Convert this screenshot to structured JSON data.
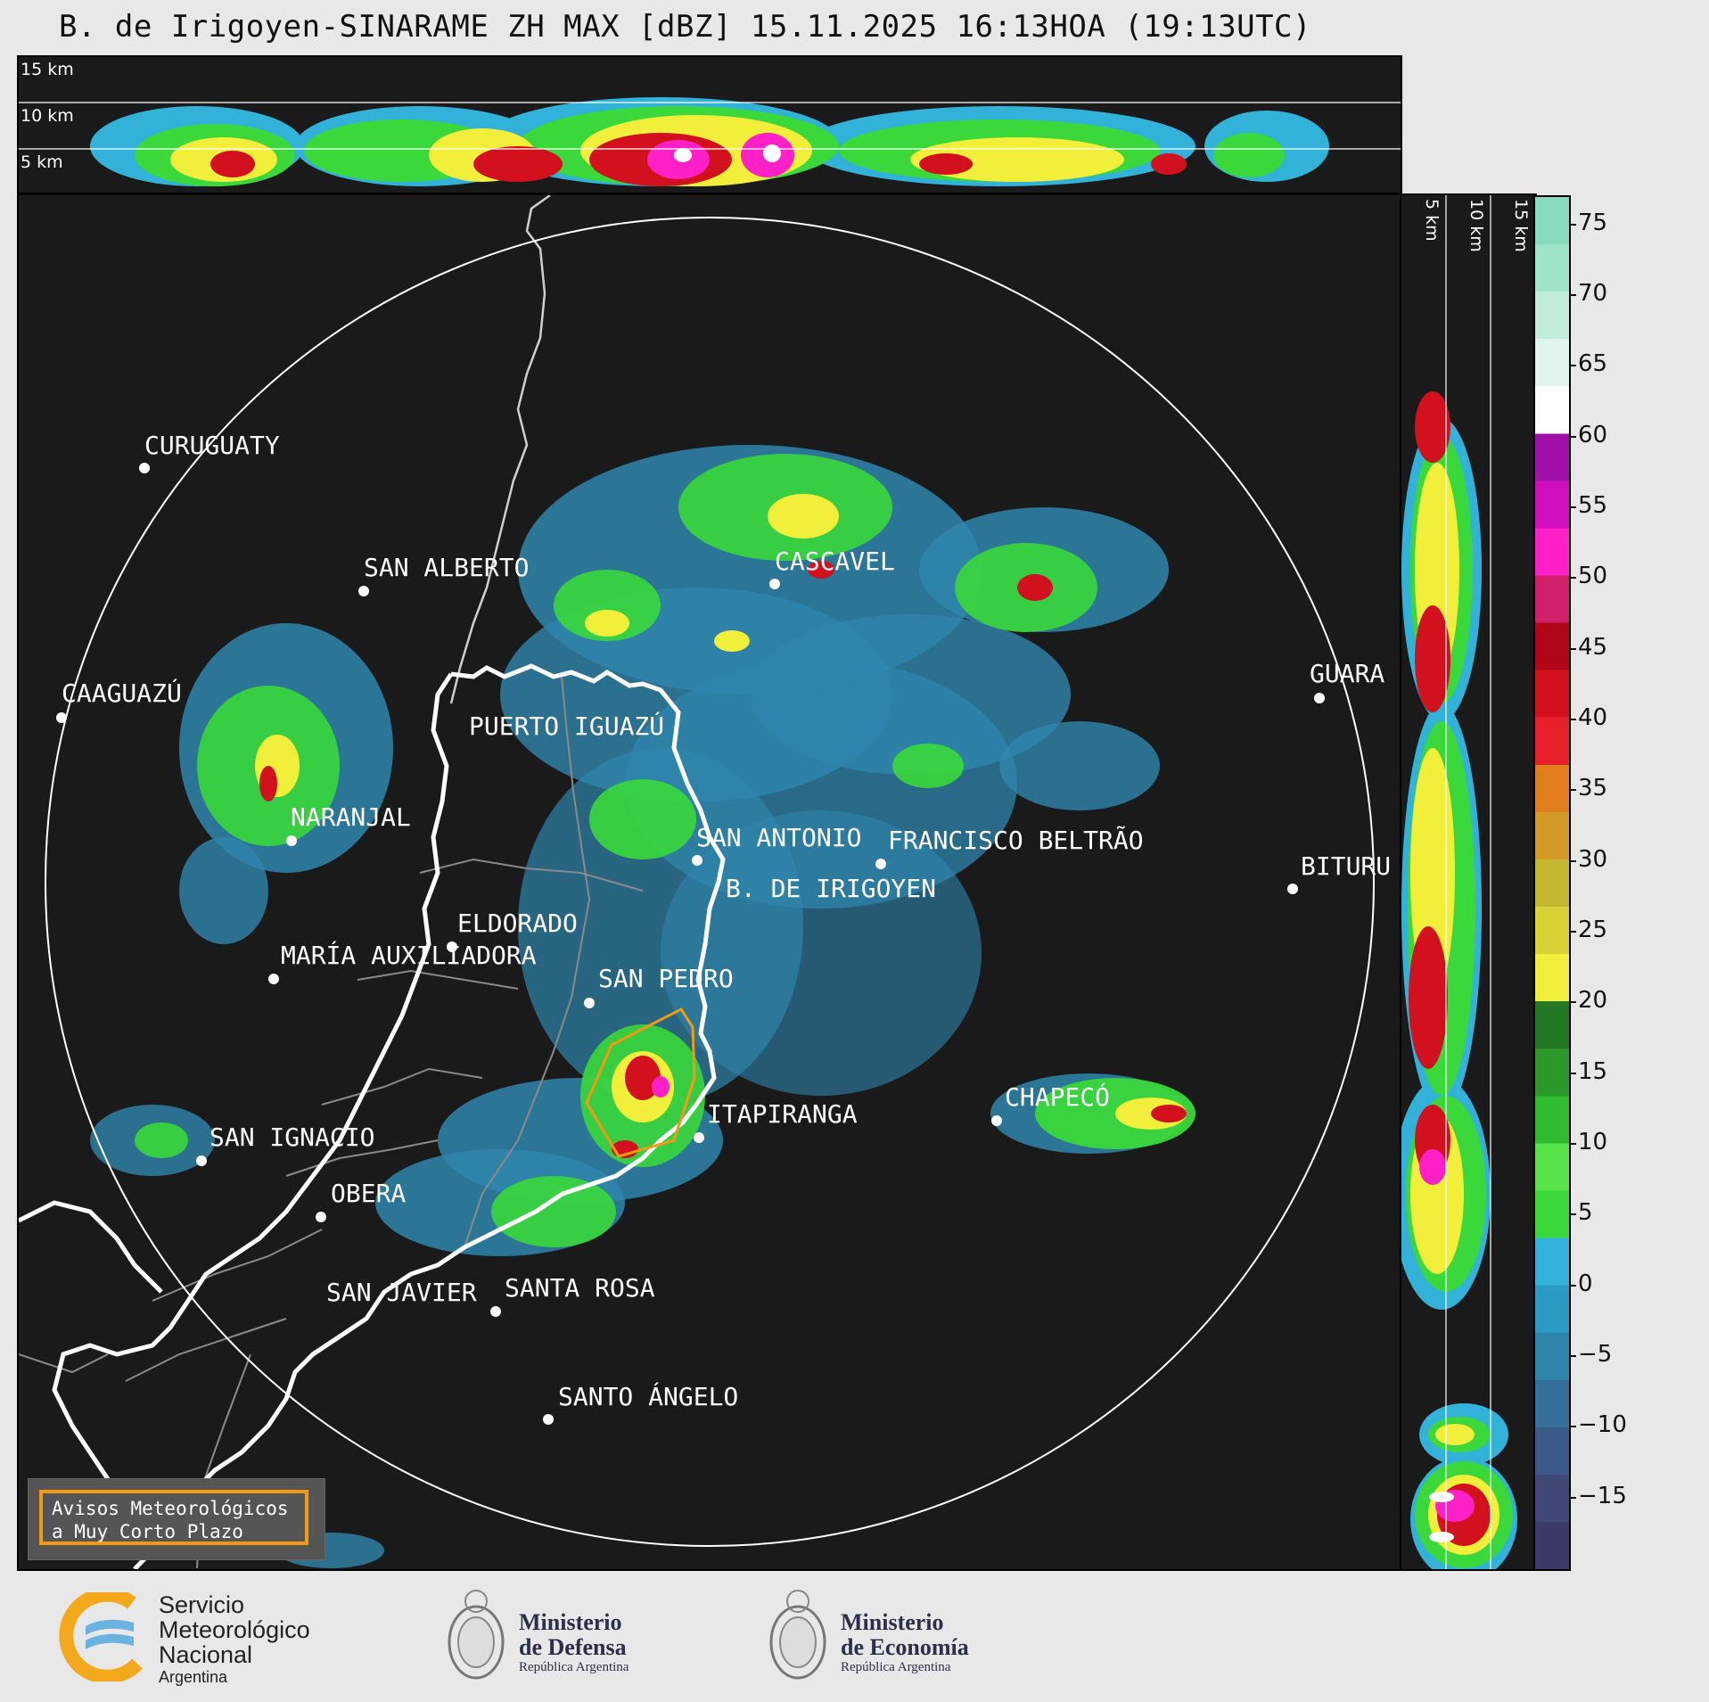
{
  "title": "B. de Irigoyen-SINARAME ZH MAX [dBZ] 15.11.2025 16:13HOA (19:13UTC)",
  "top_panel": {
    "height_labels": [
      "15 km",
      "10 km",
      "5 km"
    ]
  },
  "right_panel": {
    "height_labels": [
      "5 km",
      "10 km",
      "15 km"
    ]
  },
  "colorbar": {
    "ticks": [
      "75",
      "70",
      "65",
      "60",
      "55",
      "50",
      "45",
      "40",
      "35",
      "30",
      "25",
      "20",
      "15",
      "10",
      "5",
      "0",
      "−5",
      "−10",
      "−15"
    ],
    "range": [
      -20,
      77
    ],
    "colors": [
      "#3b3a6a",
      "#404878",
      "#3c5a8a",
      "#36709a",
      "#2f86ad",
      "#2a9bc4",
      "#32b2d8",
      "#3ad83a",
      "#58e34a",
      "#2fbd2f",
      "#2b9a2b",
      "#247a24",
      "#f2ef3a",
      "#d8d236",
      "#c4b730",
      "#d49a28",
      "#e07e1e",
      "#e8202a",
      "#d2101e",
      "#b00818",
      "#d0206a",
      "#ff20c8",
      "#d010c0",
      "#a010a8",
      "#ffffff",
      "#e0f4ec",
      "#c0ecd8",
      "#a0e4c8",
      "#86dcbc"
    ]
  },
  "cities": [
    {
      "name": "CURUGUATY"
    },
    {
      "name": "SAN ALBERTO"
    },
    {
      "name": "CASCAVEL"
    },
    {
      "name": "CAAGUAZÚ"
    },
    {
      "name": "GUARA"
    },
    {
      "name": "PUERTO IGUAZÚ"
    },
    {
      "name": "NARANJAL"
    },
    {
      "name": "SAN ANTONIO"
    },
    {
      "name": "FRANCISCO BELTRÃO"
    },
    {
      "name": "BITURU"
    },
    {
      "name": "B. DE IRIGOYEN"
    },
    {
      "name": "ELDORADO"
    },
    {
      "name": "MARÍA AUXILIADORA"
    },
    {
      "name": "SAN PEDRO"
    },
    {
      "name": "CHAPECÓ"
    },
    {
      "name": "ITAPIRANGA"
    },
    {
      "name": "SAN IGNACIO"
    },
    {
      "name": "OBERA"
    },
    {
      "name": "SAN JAVIER"
    },
    {
      "name": "SANTA ROSA"
    },
    {
      "name": "SANTO ÁNGELO"
    }
  ],
  "legend": {
    "line1": "Avisos Meteorológicos",
    "line2": "a Muy Corto Plazo"
  },
  "logos": {
    "smn": {
      "line1": "Servicio",
      "line2": "Meteorológico",
      "line3": "Nacional",
      "line4": "Argentina"
    },
    "defensa": {
      "title1": "Ministerio",
      "title2": "de Defensa",
      "sub": "República Argentina"
    },
    "economia": {
      "title1": "Ministerio",
      "title2": "de Economía",
      "sub": "República Argentina"
    }
  },
  "accent_colors": {
    "warning_polygon": "#f29a14",
    "range_ring": "#ffffff",
    "background": "#1a1a1a"
  }
}
